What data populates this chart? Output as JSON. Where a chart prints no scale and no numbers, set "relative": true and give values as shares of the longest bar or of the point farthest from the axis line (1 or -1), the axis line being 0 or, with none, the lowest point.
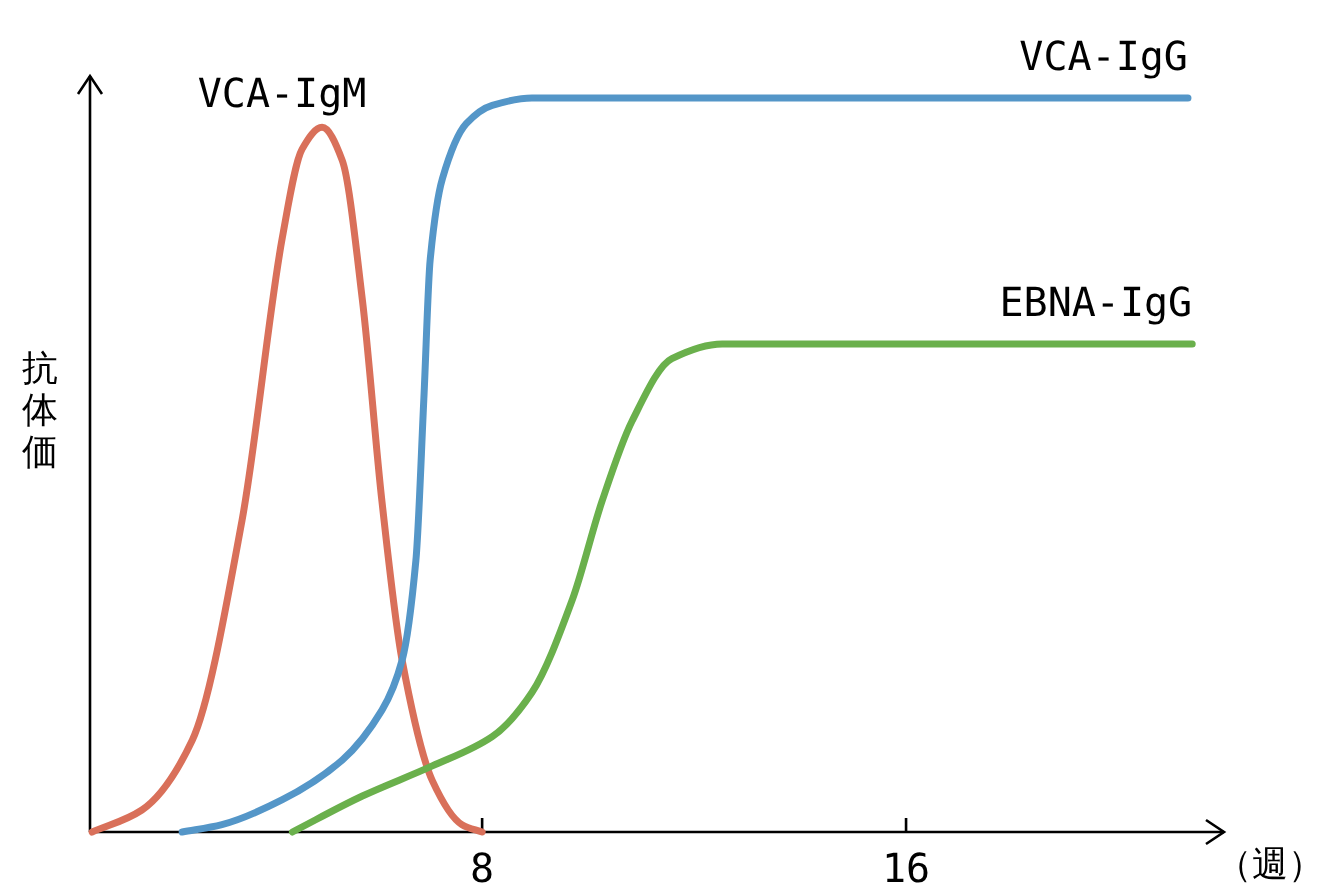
{
  "chart_data": {
    "type": "line",
    "relative": true,
    "xlabel": "（週）",
    "ylabel": "抗体価",
    "xlim": [
      0.6,
      22
    ],
    "xticks": [
      8,
      16
    ],
    "series": [
      {
        "name": "VCA-IgM",
        "color": "#d9705a",
        "x": [
          0.64,
          1.58,
          2.53,
          3.47,
          4.23,
          4.6,
          4.98,
          5.36,
          5.74,
          6.11,
          6.49,
          7.06,
          7.62,
          8.0
        ],
        "values": [
          0,
          0.03,
          0.125,
          0.425,
          0.81,
          0.93,
          0.96,
          0.915,
          0.725,
          0.45,
          0.234,
          0.07,
          0.01,
          0
        ]
      },
      {
        "name": "VCA-IgG",
        "color": "#5496c8",
        "x": [
          2.34,
          3.09,
          4.23,
          5.36,
          6.11,
          6.49,
          6.75,
          6.9,
          7.02,
          7.25,
          7.7,
          8.19,
          8.94,
          21.32
        ],
        "values": [
          0,
          0.01,
          0.044,
          0.098,
          0.166,
          0.234,
          0.37,
          0.59,
          0.78,
          0.89,
          0.965,
          0.99,
          1,
          1
        ]
      },
      {
        "name": "EBNA-IgG",
        "color": "#6ab04c",
        "x": [
          4.42,
          5.74,
          7.06,
          8.19,
          8.94,
          9.7,
          10.26,
          10.83,
          11.58,
          12.53,
          21.4
        ],
        "values": [
          0,
          0.049,
          0.09,
          0.13,
          0.19,
          0.316,
          0.45,
          0.56,
          0.645,
          0.665,
          0.665
        ]
      }
    ]
  }
}
